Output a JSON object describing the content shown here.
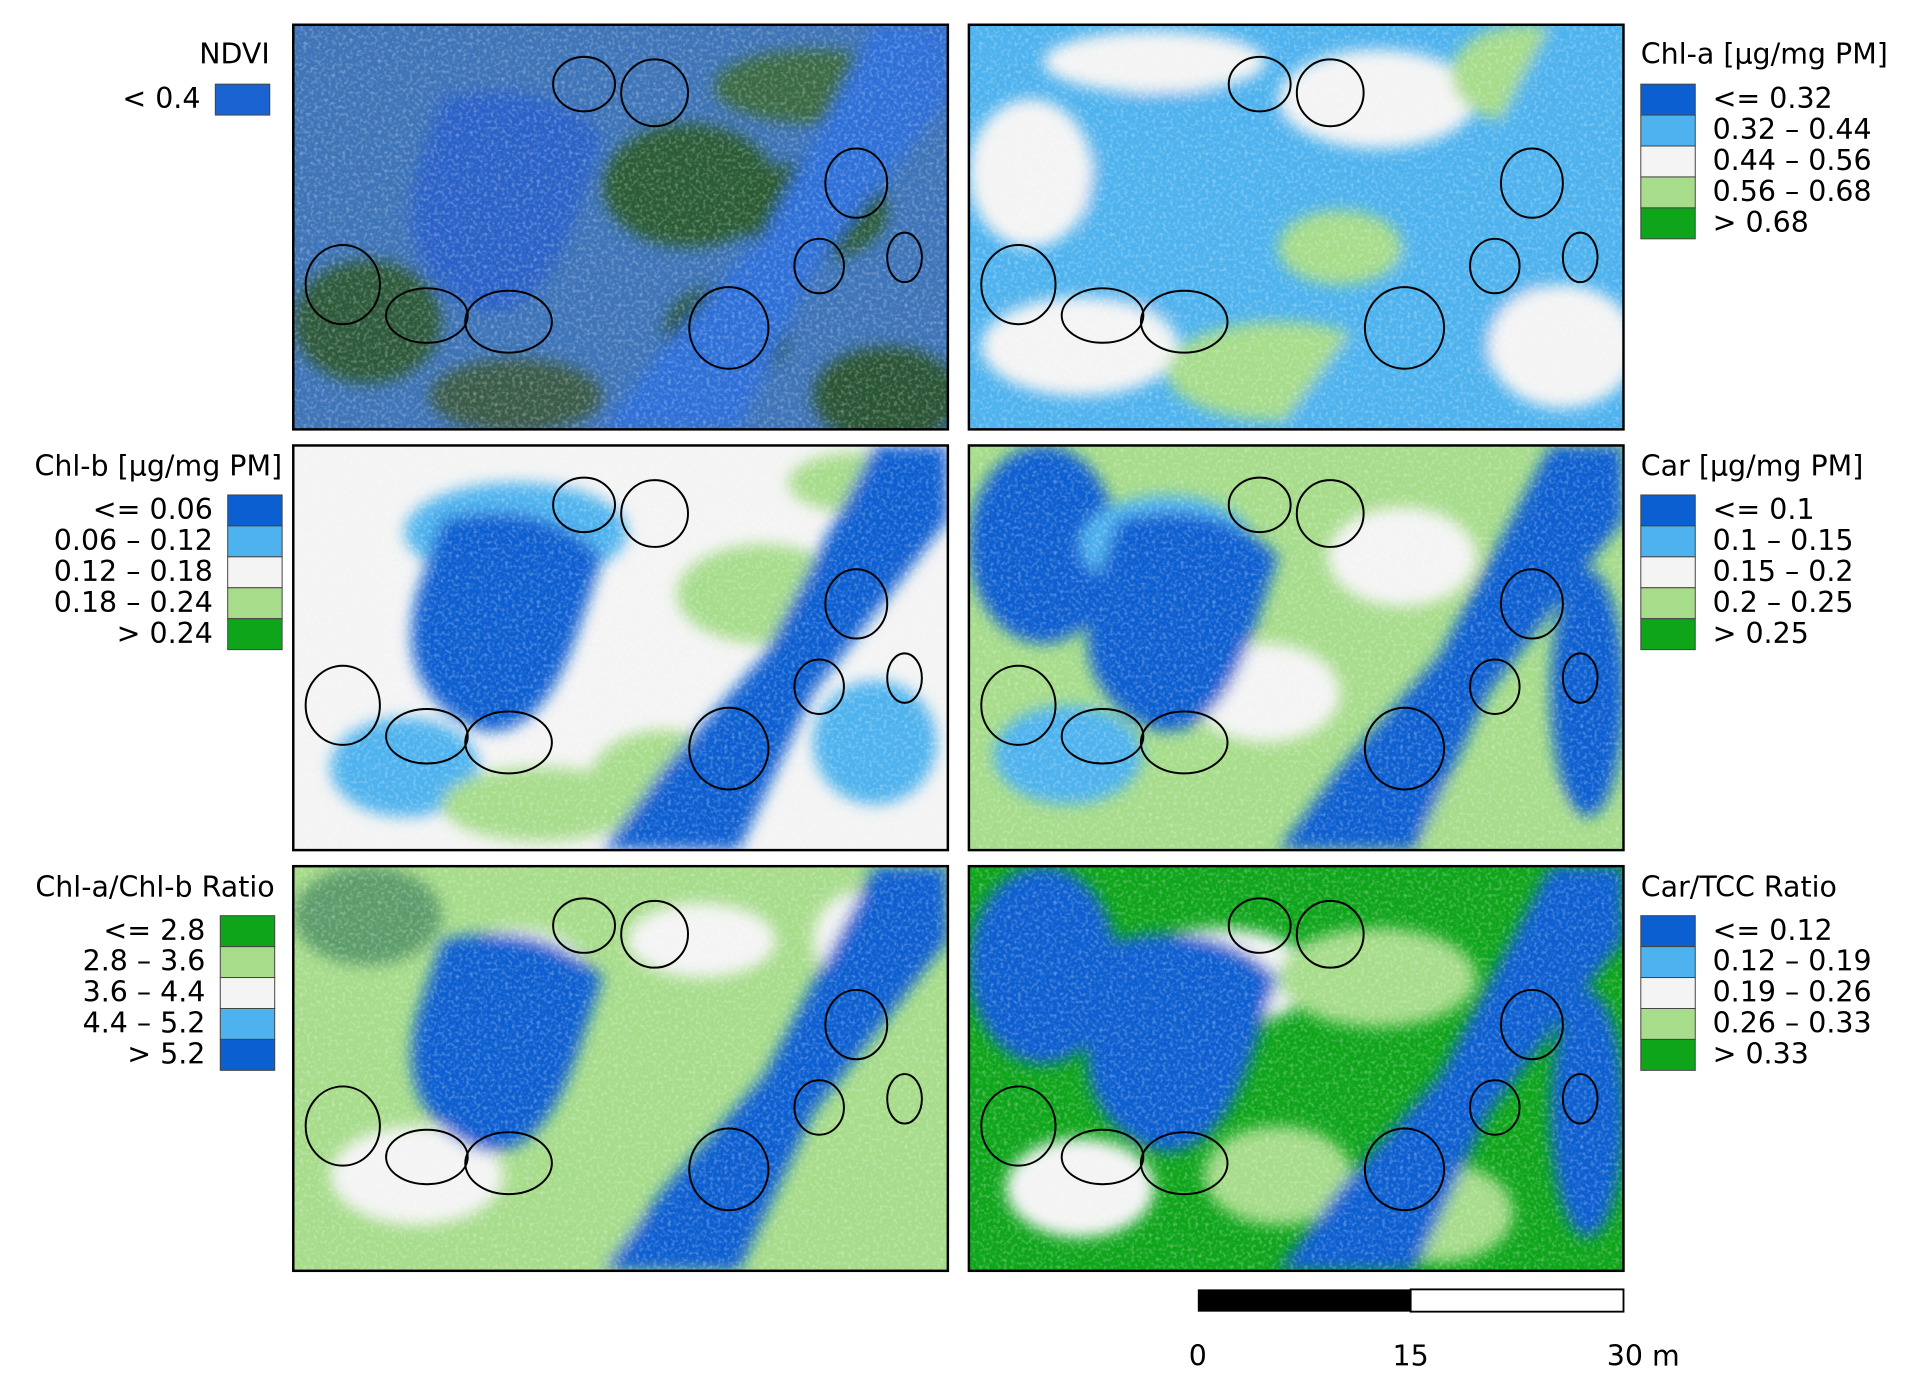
{
  "panels": [
    {
      "title": "NDVI",
      "legend": [
        {
          "label": "< 0.4",
          "color": "#1a63d1"
        }
      ]
    },
    {
      "title": "Chl-a [µg/mg PM]",
      "legend": [
        {
          "label": "<= 0.32",
          "color": "#0b5fd1"
        },
        {
          "label": "0.32 – 0.44",
          "color": "#4db2ee"
        },
        {
          "label": "0.44 – 0.56",
          "color": "#f4f4f4"
        },
        {
          "label": "0.56 – 0.68",
          "color": "#a6dc8a"
        },
        {
          "label": "> 0.68",
          "color": "#0ea51b"
        }
      ]
    },
    {
      "title": "Chl-b [µg/mg PM]",
      "legend": [
        {
          "label": "<= 0.06",
          "color": "#0b5fd1"
        },
        {
          "label": "0.06 – 0.12",
          "color": "#4db2ee"
        },
        {
          "label": "0.12 – 0.18",
          "color": "#f4f4f4"
        },
        {
          "label": "0.18 – 0.24",
          "color": "#a6dc8a"
        },
        {
          "label": "> 0.24",
          "color": "#0ea51b"
        }
      ]
    },
    {
      "title": "Car [µg/mg PM]",
      "legend": [
        {
          "label": "<= 0.1",
          "color": "#0b5fd1"
        },
        {
          "label": "0.1 – 0.15",
          "color": "#4db2ee"
        },
        {
          "label": "0.15 – 0.2",
          "color": "#f4f4f4"
        },
        {
          "label": "0.2 – 0.25",
          "color": "#a6dc8a"
        },
        {
          "label": "> 0.25",
          "color": "#0ea51b"
        }
      ]
    },
    {
      "title": "Chl-a/Chl-b Ratio",
      "legend": [
        {
          "label": "<= 2.8",
          "color": "#0ea51b"
        },
        {
          "label": "2.8 – 3.6",
          "color": "#a6dc8a"
        },
        {
          "label": "3.6 – 4.4",
          "color": "#f4f4f4"
        },
        {
          "label": "4.4 – 5.2",
          "color": "#4db2ee"
        },
        {
          "label": "> 5.2",
          "color": "#0b5fd1"
        }
      ]
    },
    {
      "title": "Car/TCC Ratio",
      "legend": [
        {
          "label": "<= 0.12",
          "color": "#0b5fd1"
        },
        {
          "label": "0.12 – 0.19",
          "color": "#4db2ee"
        },
        {
          "label": "0.19 – 0.26",
          "color": "#f4f4f4"
        },
        {
          "label": "0.26 – 0.33",
          "color": "#a6dc8a"
        },
        {
          "label": "> 0.33",
          "color": "#0ea51b"
        }
      ]
    }
  ],
  "scale_bar": {
    "labels": [
      "0",
      "15",
      "30 m"
    ]
  }
}
